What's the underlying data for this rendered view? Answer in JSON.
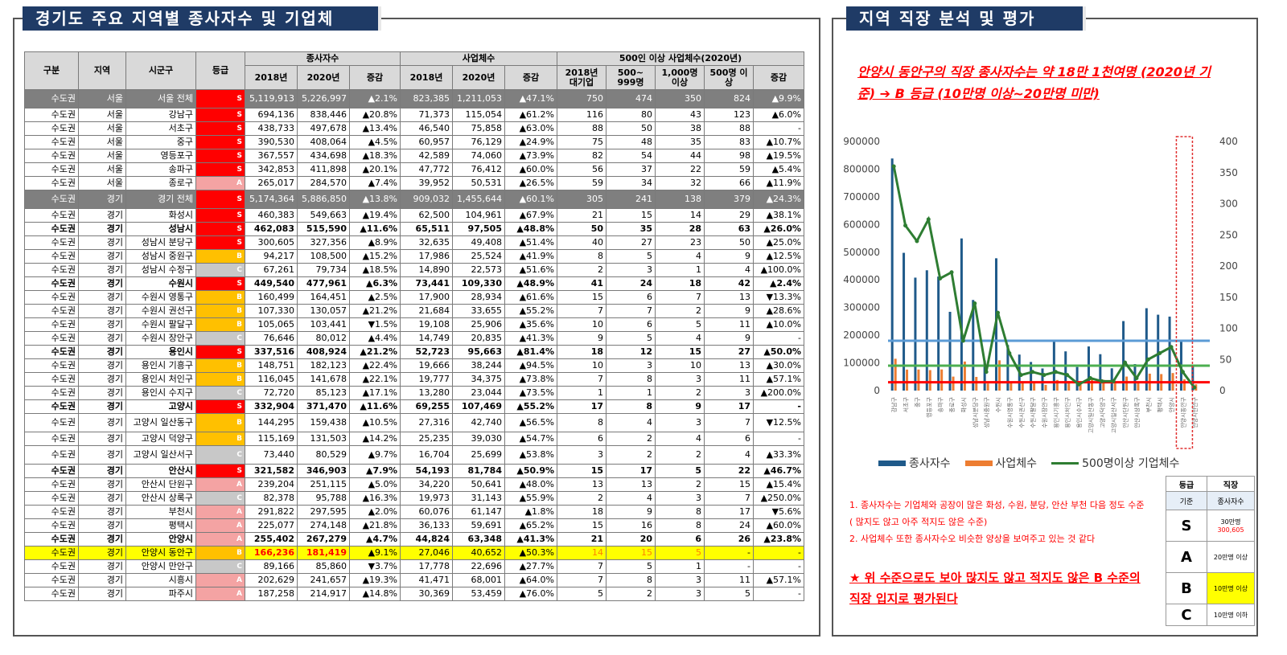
{
  "left_title": "경기도 주요 지역별 종사자수 및 기업체",
  "right_title": "지역 직장 분석 및 평가",
  "table": {
    "headers": {
      "gubun": "구분",
      "region": "지역",
      "city": "시군구",
      "grade": "등급",
      "workers": "종사자수",
      "biz": "사업체수",
      "big": "500인 이상 사업체수(2020년)",
      "y2018": "2018년",
      "y2020": "2020년",
      "change": "증감",
      "big2018": "2018년 대기업",
      "b500": "500~ 999명",
      "b1000": "1,000명 이상",
      "b500n": "500명 이상"
    },
    "rows": [
      {
        "t": "total",
        "c": [
          "수도권",
          "서울",
          "서울 전체",
          "S",
          "5,119,913",
          "5,226,997",
          "▲2.1%",
          "823,385",
          "1,211,053",
          "▲47.1%",
          "750",
          "474",
          "350",
          "824",
          "▲9.9%"
        ]
      },
      {
        "t": "",
        "c": [
          "수도권",
          "서울",
          "강남구",
          "S",
          "694,136",
          "838,446",
          "▲20.8%",
          "71,373",
          "115,054",
          "▲61.2%",
          "116",
          "80",
          "43",
          "123",
          "▲6.0%"
        ]
      },
      {
        "t": "",
        "c": [
          "수도권",
          "서울",
          "서초구",
          "S",
          "438,733",
          "497,678",
          "▲13.4%",
          "46,540",
          "75,858",
          "▲63.0%",
          "88",
          "50",
          "38",
          "88",
          "-"
        ]
      },
      {
        "t": "",
        "c": [
          "수도권",
          "서울",
          "중구",
          "S",
          "390,530",
          "408,064",
          "▲4.5%",
          "60,957",
          "76,129",
          "▲24.9%",
          "75",
          "48",
          "35",
          "83",
          "▲10.7%"
        ]
      },
      {
        "t": "",
        "c": [
          "수도권",
          "서울",
          "영등포구",
          "S",
          "367,557",
          "434,698",
          "▲18.3%",
          "42,589",
          "74,060",
          "▲73.9%",
          "82",
          "54",
          "44",
          "98",
          "▲19.5%"
        ]
      },
      {
        "t": "",
        "c": [
          "수도권",
          "서울",
          "송파구",
          "S",
          "342,853",
          "411,898",
          "▲20.1%",
          "47,772",
          "76,412",
          "▲60.0%",
          "56",
          "37",
          "22",
          "59",
          "▲5.4%"
        ]
      },
      {
        "t": "",
        "c": [
          "수도권",
          "서울",
          "종로구",
          "A",
          "265,017",
          "284,570",
          "▲7.4%",
          "39,952",
          "50,531",
          "▲26.5%",
          "59",
          "34",
          "32",
          "66",
          "▲11.9%"
        ]
      },
      {
        "t": "total",
        "c": [
          "수도권",
          "경기",
          "경기 전체",
          "S",
          "5,174,364",
          "5,886,850",
          "▲13.8%",
          "909,032",
          "1,455,644",
          "▲60.1%",
          "305",
          "241",
          "138",
          "379",
          "▲24.3%"
        ]
      },
      {
        "t": "",
        "c": [
          "수도권",
          "경기",
          "화성시",
          "S",
          "460,383",
          "549,663",
          "▲19.4%",
          "62,500",
          "104,961",
          "▲67.9%",
          "21",
          "15",
          "14",
          "29",
          "▲38.1%"
        ]
      },
      {
        "t": "bold",
        "c": [
          "수도권",
          "경기",
          "성남시",
          "S",
          "462,083",
          "515,590",
          "▲11.6%",
          "65,511",
          "97,505",
          "▲48.8%",
          "50",
          "35",
          "28",
          "63",
          "▲26.0%"
        ]
      },
      {
        "t": "",
        "c": [
          "수도권",
          "경기",
          "성남시 분당구",
          "S",
          "300,605",
          "327,356",
          "▲8.9%",
          "32,635",
          "49,408",
          "▲51.4%",
          "40",
          "27",
          "23",
          "50",
          "▲25.0%"
        ]
      },
      {
        "t": "",
        "c": [
          "수도권",
          "경기",
          "성남시 중원구",
          "B",
          "94,217",
          "108,500",
          "▲15.2%",
          "17,986",
          "25,524",
          "▲41.9%",
          "8",
          "5",
          "4",
          "9",
          "▲12.5%"
        ]
      },
      {
        "t": "",
        "c": [
          "수도권",
          "경기",
          "성남시 수정구",
          "C",
          "67,261",
          "79,734",
          "▲18.5%",
          "14,890",
          "22,573",
          "▲51.6%",
          "2",
          "3",
          "1",
          "4",
          "▲100.0%"
        ]
      },
      {
        "t": "bold",
        "c": [
          "수도권",
          "경기",
          "수원시",
          "S",
          "449,540",
          "477,961",
          "▲6.3%",
          "73,441",
          "109,330",
          "▲48.9%",
          "41",
          "24",
          "18",
          "42",
          "▲2.4%"
        ]
      },
      {
        "t": "",
        "c": [
          "수도권",
          "경기",
          "수원시 영통구",
          "B",
          "160,499",
          "164,451",
          "▲2.5%",
          "17,900",
          "28,934",
          "▲61.6%",
          "15",
          "6",
          "7",
          "13",
          "▼13.3%"
        ]
      },
      {
        "t": "",
        "c": [
          "수도권",
          "경기",
          "수원시 권선구",
          "B",
          "107,330",
          "130,057",
          "▲21.2%",
          "21,684",
          "33,655",
          "▲55.2%",
          "7",
          "7",
          "2",
          "9",
          "▲28.6%"
        ]
      },
      {
        "t": "",
        "c": [
          "수도권",
          "경기",
          "수원시 팔달구",
          "B",
          "105,065",
          "103,441",
          "▼1.5%",
          "19,108",
          "25,906",
          "▲35.6%",
          "10",
          "6",
          "5",
          "11",
          "▲10.0%"
        ]
      },
      {
        "t": "",
        "c": [
          "수도권",
          "경기",
          "수원시 장안구",
          "C",
          "76,646",
          "80,012",
          "▲4.4%",
          "14,749",
          "20,835",
          "▲41.3%",
          "9",
          "5",
          "4",
          "9",
          "-"
        ]
      },
      {
        "t": "bold",
        "c": [
          "수도권",
          "경기",
          "용인시",
          "S",
          "337,516",
          "408,924",
          "▲21.2%",
          "52,723",
          "95,663",
          "▲81.4%",
          "18",
          "12",
          "15",
          "27",
          "▲50.0%"
        ]
      },
      {
        "t": "",
        "c": [
          "수도권",
          "경기",
          "용인시 기흥구",
          "B",
          "148,751",
          "182,123",
          "▲22.4%",
          "19,666",
          "38,244",
          "▲94.5%",
          "10",
          "3",
          "10",
          "13",
          "▲30.0%"
        ]
      },
      {
        "t": "",
        "c": [
          "수도권",
          "경기",
          "용인시 처인구",
          "B",
          "116,045",
          "141,678",
          "▲22.1%",
          "19,777",
          "34,375",
          "▲73.8%",
          "7",
          "8",
          "3",
          "11",
          "▲57.1%"
        ]
      },
      {
        "t": "",
        "c": [
          "수도권",
          "경기",
          "용인시 수지구",
          "C",
          "72,720",
          "85,123",
          "▲17.1%",
          "13,280",
          "23,044",
          "▲73.5%",
          "1",
          "1",
          "2",
          "3",
          "▲200.0%"
        ]
      },
      {
        "t": "bold",
        "c": [
          "수도권",
          "경기",
          "고양시",
          "S",
          "332,904",
          "371,470",
          "▲11.6%",
          "69,255",
          "107,469",
          "▲55.2%",
          "17",
          "8",
          "9",
          "17",
          "-"
        ]
      },
      {
        "t": "tall",
        "c": [
          "수도권",
          "경기",
          "고양시 일산동구",
          "B",
          "144,295",
          "159,438",
          "▲10.5%",
          "27,316",
          "42,740",
          "▲56.5%",
          "8",
          "4",
          "3",
          "7",
          "▼12.5%"
        ]
      },
      {
        "t": "",
        "c": [
          "수도권",
          "경기",
          "고양시 덕양구",
          "B",
          "115,169",
          "131,503",
          "▲14.2%",
          "25,235",
          "39,030",
          "▲54.7%",
          "6",
          "2",
          "4",
          "6",
          "-"
        ]
      },
      {
        "t": "tall",
        "c": [
          "수도권",
          "경기",
          "고양시 일산서구",
          "C",
          "73,440",
          "80,529",
          "▲9.7%",
          "16,704",
          "25,699",
          "▲53.8%",
          "3",
          "2",
          "2",
          "4",
          "▲33.3%"
        ]
      },
      {
        "t": "bold",
        "c": [
          "수도권",
          "경기",
          "안산시",
          "S",
          "321,582",
          "346,903",
          "▲7.9%",
          "54,193",
          "81,784",
          "▲50.9%",
          "15",
          "17",
          "5",
          "22",
          "▲46.7%"
        ]
      },
      {
        "t": "",
        "c": [
          "수도권",
          "경기",
          "안산시 단원구",
          "A",
          "239,204",
          "251,115",
          "▲5.0%",
          "34,220",
          "50,641",
          "▲48.0%",
          "13",
          "13",
          "2",
          "15",
          "▲15.4%"
        ]
      },
      {
        "t": "",
        "c": [
          "수도권",
          "경기",
          "안산시 상록구",
          "C",
          "82,378",
          "95,788",
          "▲16.3%",
          "19,973",
          "31,143",
          "▲55.9%",
          "2",
          "4",
          "3",
          "7",
          "▲250.0%"
        ]
      },
      {
        "t": "",
        "c": [
          "수도권",
          "경기",
          "부천시",
          "A",
          "291,822",
          "297,595",
          "▲2.0%",
          "60,076",
          "61,147",
          "▲1.8%",
          "18",
          "9",
          "8",
          "17",
          "▼5.6%"
        ]
      },
      {
        "t": "",
        "c": [
          "수도권",
          "경기",
          "평택시",
          "A",
          "225,077",
          "274,148",
          "▲21.8%",
          "36,133",
          "59,691",
          "▲65.2%",
          "15",
          "16",
          "8",
          "24",
          "▲60.0%"
        ]
      },
      {
        "t": "bold",
        "c": [
          "수도권",
          "경기",
          "안양시",
          "A",
          "255,402",
          "267,279",
          "▲4.7%",
          "44,824",
          "63,348",
          "▲41.3%",
          "21",
          "20",
          "6",
          "26",
          "▲23.8%"
        ]
      },
      {
        "t": "hl",
        "c": [
          "수도권",
          "경기",
          "안양시 동안구",
          "B",
          "166,236",
          "181,419",
          "▲9.1%",
          "27,046",
          "40,652",
          "▲50.3%",
          "14",
          "15",
          "5",
          "-",
          "-"
        ]
      },
      {
        "t": "",
        "c": [
          "수도권",
          "경기",
          "안양시 만안구",
          "C",
          "89,166",
          "85,860",
          "▼3.7%",
          "17,778",
          "22,696",
          "▲27.7%",
          "7",
          "5",
          "1",
          "-",
          "-"
        ]
      },
      {
        "t": "",
        "c": [
          "수도권",
          "경기",
          "시흥시",
          "A",
          "202,629",
          "241,657",
          "▲19.3%",
          "41,471",
          "68,001",
          "▲64.0%",
          "7",
          "8",
          "3",
          "11",
          "▲57.1%"
        ]
      },
      {
        "t": "",
        "c": [
          "수도권",
          "경기",
          "파주시",
          "A",
          "187,258",
          "214,917",
          "▲14.8%",
          "30,369",
          "53,459",
          "▲76.0%",
          "5",
          "2",
          "3",
          "5",
          "-"
        ]
      }
    ]
  },
  "headline": "안양시 동안구의 직장 종사자수는 약 18만 1천여명 (2020년 기준) ➔ B 등급 (10만명 이상~20만명 미만)",
  "chart_data": {
    "type": "bar",
    "categories": [
      "강남구",
      "서초구",
      "중구",
      "영등포구",
      "송파구",
      "종로구",
      "화성시",
      "성남시분당구",
      "성남시중원구",
      "수원시",
      "수원시영통구",
      "수원시권선구",
      "수원시팔달구",
      "수원시장안구",
      "용인시기흥구",
      "용인시처인구",
      "용인시수지구",
      "고양시일산동구",
      "고양시덕양구",
      "고양시일산서구",
      "안산시단원구",
      "안산시상록구",
      "부천시",
      "평택시",
      "안양시",
      "안양시동안구",
      "안양시만안구"
    ],
    "series": [
      {
        "name": "종사자수",
        "axis": "left",
        "values": [
          838446,
          497678,
          408064,
          434698,
          411898,
          284570,
          549663,
          327356,
          108500,
          477961,
          164451,
          130057,
          103441,
          80012,
          182123,
          141678,
          85123,
          159438,
          131503,
          80529,
          251115,
          95788,
          297595,
          274148,
          267279,
          181419,
          85860
        ]
      },
      {
        "name": "사업체수",
        "axis": "left",
        "values": [
          115054,
          75858,
          76129,
          74060,
          76412,
          50531,
          104961,
          49408,
          25524,
          109330,
          28934,
          33655,
          25906,
          20835,
          38244,
          34375,
          23044,
          42740,
          39030,
          25699,
          50641,
          31143,
          61147,
          59691,
          63348,
          40652,
          22696
        ]
      },
      {
        "name": "500명이상 기업체수",
        "axis": "right",
        "type": "line",
        "values": [
          360,
          265,
          240,
          275,
          180,
          190,
          80,
          140,
          30,
          125,
          60,
          25,
          30,
          25,
          30,
          25,
          10,
          20,
          15,
          15,
          45,
          20,
          50,
          60,
          70,
          30,
          5
        ]
      }
    ],
    "left_ticks": [
      "0",
      "100000",
      "200000",
      "300000",
      "400000",
      "500000",
      "600000",
      "700000",
      "800000",
      "900000"
    ],
    "right_ticks": [
      "0",
      "50",
      "100",
      "150",
      "200",
      "250",
      "300",
      "350",
      "400"
    ],
    "ylim_left": [
      0,
      900000
    ],
    "ylim_right": [
      0,
      400
    ],
    "reference_lines": {
      "blue": 180000,
      "green": 90000,
      "red": 30000
    },
    "legend_position": "bottom",
    "grid": false
  },
  "notes": [
    "1. 종사자수는 기업체와 공장이 많은 화성, 수원, 분당, 안산 부천 다음 정도 수준 ( 많지도 않고 아주 적지도 않은 수준)",
    "2. 사업체수 또한 종사자수오 비슷한 양상을 보여주고 있는 것 같다"
  ],
  "verdict": "★ 위 수준으로도 보아 많지도 않고 적지도 않은 B 수준의 직장 입지로 평가된다",
  "criteria": {
    "h_grade": "등급",
    "h_job": "직장",
    "h_base": "기준",
    "h_workers": "종사자수",
    "rows": [
      {
        "level": "S",
        "desc": "30만명",
        "desc2": "300,605"
      },
      {
        "level": "A",
        "desc": "20만명 이상"
      },
      {
        "level": "B",
        "desc": "10만명 이상"
      },
      {
        "level": "C",
        "desc": "10만명 이하"
      }
    ]
  },
  "colors": {
    "blue": "#1f5a8a",
    "orange": "#ed7d31",
    "green": "#2e7d32",
    "refblue": "#5b9bd5",
    "refgreen": "#4caf50",
    "refred": "#ff0000",
    "title_bg": "#1f3b66"
  }
}
